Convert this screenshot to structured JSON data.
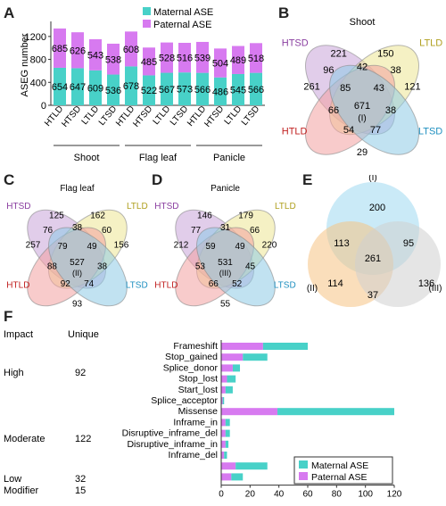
{
  "panel_labels": {
    "a": "A",
    "b": "B",
    "c": "C",
    "d": "D",
    "e": "E",
    "f": "F"
  },
  "colors": {
    "maternal": "#48d1c8",
    "paternal": "#d77af0",
    "htsd": "#c8a4d8",
    "ltld": "#ece694",
    "htld": "#f2a0a0",
    "ltsd": "#8ecbe6",
    "vI": "#9ed8f0",
    "vII": "#f6c384",
    "vIII": "#cfcfcf"
  },
  "chart_data": [
    {
      "type": "bar",
      "ylabel": "ASEG number",
      "ylim": [
        0,
        1400
      ],
      "yticks": [
        "0",
        "400",
        "800",
        "1200"
      ],
      "categories": [
        "HTLD",
        "HTSD",
        "LTLD",
        "LTSD",
        "HTLD",
        "HTSD",
        "LTLD",
        "LTSD",
        "HTLD",
        "HTSD",
        "LTLD",
        "LTSD"
      ],
      "groups": [
        "Shoot",
        "Flag leaf",
        "Panicle"
      ],
      "series": [
        {
          "name": "Maternal ASE",
          "values": [
            654,
            647,
            609,
            536,
            678,
            522,
            567,
            573,
            566,
            486,
            545,
            566
          ]
        },
        {
          "name": "Paternal ASE",
          "values": [
            685,
            626,
            543,
            538,
            608,
            485,
            528,
            516,
            539,
            504,
            489,
            518
          ]
        }
      ]
    },
    {
      "type": "bar",
      "orientation": "horizontal",
      "xlim": [
        0,
        120
      ],
      "xticks": [
        "0",
        "20",
        "40",
        "60",
        "80",
        "100",
        "120"
      ],
      "col_headers": [
        "Impact",
        "Unique"
      ],
      "impact_groups": [
        {
          "impact": "High",
          "unique": "92"
        },
        {
          "impact": "Moderate",
          "unique": "122"
        },
        {
          "impact": "Low",
          "unique": "32"
        },
        {
          "impact": "Modifier",
          "unique": "15"
        }
      ],
      "categories": [
        "Frameshift",
        "Stop_gained",
        "Splice_donor",
        "Stop_lost",
        "Start_lost",
        "Splice_acceptor",
        "Missense",
        "Inframe_in",
        "Disruptive_inframe_del",
        "Disruptive_inframe_in",
        "Inframe_del",
        "",
        ""
      ],
      "series": [
        {
          "name": "Maternal ASE",
          "values": [
            31,
            17,
            5,
            6,
            5,
            1,
            81,
            3,
            3,
            2,
            2,
            22,
            8
          ]
        },
        {
          "name": "Paternal ASE",
          "values": [
            29,
            15,
            8,
            4,
            3,
            1,
            39,
            3,
            3,
            3,
            2,
            10,
            7
          ]
        }
      ]
    }
  ],
  "venn_shoot": {
    "title": "Shoot",
    "labels": [
      "HTSD",
      "LTLD",
      "HTLD",
      "LTSD"
    ],
    "marker": "(I)",
    "values": {
      "htsd": "221",
      "ltld": "150",
      "htld": "261",
      "ltsd": "121",
      "hs_ll": "42",
      "hs_hl": "96",
      "ll_ls": "38",
      "hl_ls": "29",
      "hs_hl_ll": "85",
      "hs_ll_ls": "43",
      "hl_ls_hs": "66",
      "hl_ll_ls": "38",
      "all": "671",
      "hl_ll": "54",
      "hs_ls": "77"
    }
  },
  "venn_flag": {
    "title": "Flag leaf",
    "labels": [
      "HTSD",
      "LTLD",
      "HTLD",
      "LTSD"
    ],
    "marker": "(II)",
    "values": {
      "htsd": "125",
      "ltld": "162",
      "htld": "257",
      "ltsd": "156",
      "hs_ll": "38",
      "hs_hl": "76",
      "ll_ls": "60",
      "hl_ls": "93",
      "hs_hl_ll": "79",
      "hs_ll_ls": "49",
      "hl_ls_hs": "88",
      "hl_ll_ls": "38",
      "all": "527",
      "hl_ll": "92",
      "hs_ls": "74"
    }
  },
  "venn_panicle": {
    "title": "Panicle",
    "labels": [
      "HTSD",
      "LTLD",
      "HTLD",
      "LTSD"
    ],
    "marker": "(III)",
    "values": {
      "htsd": "146",
      "ltld": "179",
      "htld": "212",
      "ltsd": "220",
      "hs_ll": "31",
      "hs_hl": "77",
      "ll_ls": "66",
      "hl_ls": "55",
      "hs_hl_ll": "59",
      "hs_ll_ls": "49",
      "hl_ls_hs": "53",
      "hl_ll_ls": "45",
      "all": "531",
      "hl_ll": "66",
      "hs_ls": "52"
    }
  },
  "venn3": {
    "labels": [
      "(I)",
      "(II)",
      "(III)"
    ],
    "values": {
      "i": "200",
      "ii": "114",
      "iii": "136",
      "i_ii": "113",
      "i_iii": "95",
      "ii_iii": "37",
      "all": "261"
    }
  }
}
